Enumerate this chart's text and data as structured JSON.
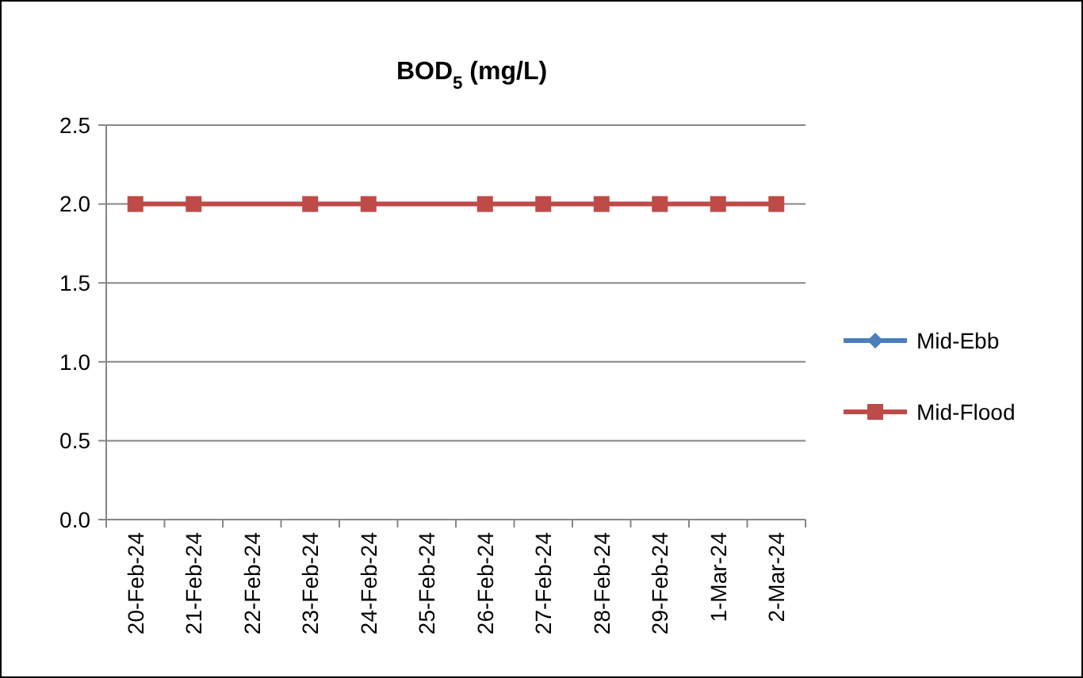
{
  "chart_data": {
    "type": "line",
    "title": "BOD$_{5}$ (mg/L)",
    "categories": [
      "20-Feb-24",
      "21-Feb-24",
      "22-Feb-24",
      "23-Feb-24",
      "24-Feb-24",
      "25-Feb-24",
      "26-Feb-24",
      "27-Feb-24",
      "28-Feb-24",
      "29-Feb-24",
      "1-Mar-24",
      "2-Mar-24"
    ],
    "series": [
      {
        "name": "Mid-Ebb",
        "color": "#4a7ebb",
        "marker": "diamond",
        "values": [
          null,
          null,
          null,
          null,
          null,
          null,
          null,
          null,
          null,
          null,
          null,
          null
        ]
      },
      {
        "name": "Mid-Flood",
        "color": "#be4b48",
        "marker": "square",
        "values": [
          2.0,
          2.0,
          null,
          2.0,
          2.0,
          null,
          2.0,
          2.0,
          2.0,
          2.0,
          2.0,
          2.0
        ]
      }
    ],
    "ylim": [
      0,
      2.5
    ],
    "yticks": [
      {
        "value": 0,
        "label": "0.0"
      },
      {
        "value": 0.5,
        "label": "0.5"
      },
      {
        "value": 1,
        "label": "1.0"
      },
      {
        "value": 1.5,
        "label": "1.5"
      },
      {
        "value": 2,
        "label": "2.0"
      },
      {
        "value": 2.5,
        "label": "2.5"
      }
    ],
    "grid": "y",
    "legend": "right",
    "line_style": "solid"
  }
}
